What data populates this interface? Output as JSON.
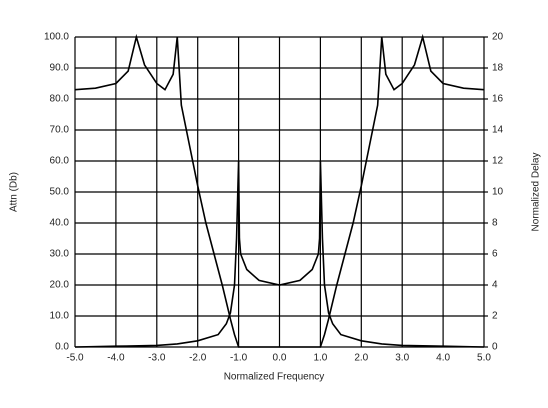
{
  "chart_data": {
    "type": "line",
    "xlabel": "Normalized Frequency",
    "ylabel": "Attn (Db)",
    "y2label": "Normalized Delay",
    "xlim": [
      -5,
      5
    ],
    "xticks": [
      {
        "value": -5,
        "label": "-5.0"
      },
      {
        "value": -4,
        "label": "-4.0"
      },
      {
        "value": -3,
        "label": "-3.0"
      },
      {
        "value": -2,
        "label": "-2.0"
      },
      {
        "value": -1,
        "label": "-1.0"
      },
      {
        "value": 0,
        "label": "0.0"
      },
      {
        "value": 1,
        "label": "1.0"
      },
      {
        "value": 2,
        "label": "2.0"
      },
      {
        "value": 3,
        "label": "3.0"
      },
      {
        "value": 4,
        "label": "4.0"
      },
      {
        "value": 5,
        "label": "5.0"
      }
    ],
    "ylim": [
      0,
      100
    ],
    "yticks": [
      {
        "value": 0,
        "label": "0.0"
      },
      {
        "value": 10,
        "label": "10.0"
      },
      {
        "value": 20,
        "label": "20.0"
      },
      {
        "value": 30,
        "label": "30.0"
      },
      {
        "value": 40,
        "label": "40.0"
      },
      {
        "value": 50,
        "label": "50.0"
      },
      {
        "value": 60,
        "label": "60.0"
      },
      {
        "value": 70,
        "label": "70.0"
      },
      {
        "value": 80,
        "label": "80.0"
      },
      {
        "value": 90,
        "label": "90.0"
      },
      {
        "value": 100,
        "label": "100.0"
      }
    ],
    "y2lim": [
      0,
      20
    ],
    "y2ticks": [
      0,
      2,
      4,
      6,
      8,
      10,
      12,
      14,
      16,
      18,
      20
    ],
    "grid": true,
    "series": [
      {
        "color": "#000000",
        "x": [
          -5,
          -4.5,
          -4,
          -3.7,
          -3.5,
          -3.3,
          -3,
          -2.8,
          -2.6,
          -2.5,
          -2.4,
          -2.2,
          -2,
          -1.8,
          -1.6,
          -1.4,
          -1.2,
          -1.1,
          -1,
          -0.5,
          0,
          0.5,
          1,
          1.1,
          1.2,
          1.4,
          1.6,
          1.8,
          2,
          2.2,
          2.4,
          2.5,
          2.6,
          2.8,
          3,
          3.3,
          3.5,
          3.7,
          4,
          4.5,
          5
        ],
        "values": [
          83,
          83.5,
          85,
          89,
          100,
          91,
          85,
          83,
          88,
          100,
          78,
          65,
          52,
          40,
          30,
          20,
          9,
          4,
          0,
          0,
          0,
          0,
          0,
          4,
          9,
          20,
          30,
          40,
          52,
          65,
          78,
          100,
          88,
          83,
          85,
          91,
          100,
          89,
          85,
          83.5,
          83
        ]
      },
      {
        "color": "#000000",
        "axis": "y2",
        "x": [
          -5,
          -4,
          -3,
          -2.5,
          -2,
          -1.5,
          -1.3,
          -1.2,
          -1.1,
          -1.05,
          -1,
          -0.98,
          -0.95,
          -0.8,
          -0.5,
          0,
          0.5,
          0.8,
          0.95,
          0.98,
          1,
          1.05,
          1.1,
          1.2,
          1.3,
          1.5,
          2,
          2.5,
          3,
          4,
          5
        ],
        "values": [
          0,
          0.05,
          0.1,
          0.2,
          0.4,
          0.8,
          1.5,
          2.2,
          4,
          7,
          12,
          7,
          6,
          5,
          4.3,
          4,
          4.3,
          5,
          6,
          7,
          12,
          7,
          4,
          2.2,
          1.5,
          0.8,
          0.4,
          0.2,
          0.1,
          0.05,
          0
        ]
      }
    ]
  }
}
